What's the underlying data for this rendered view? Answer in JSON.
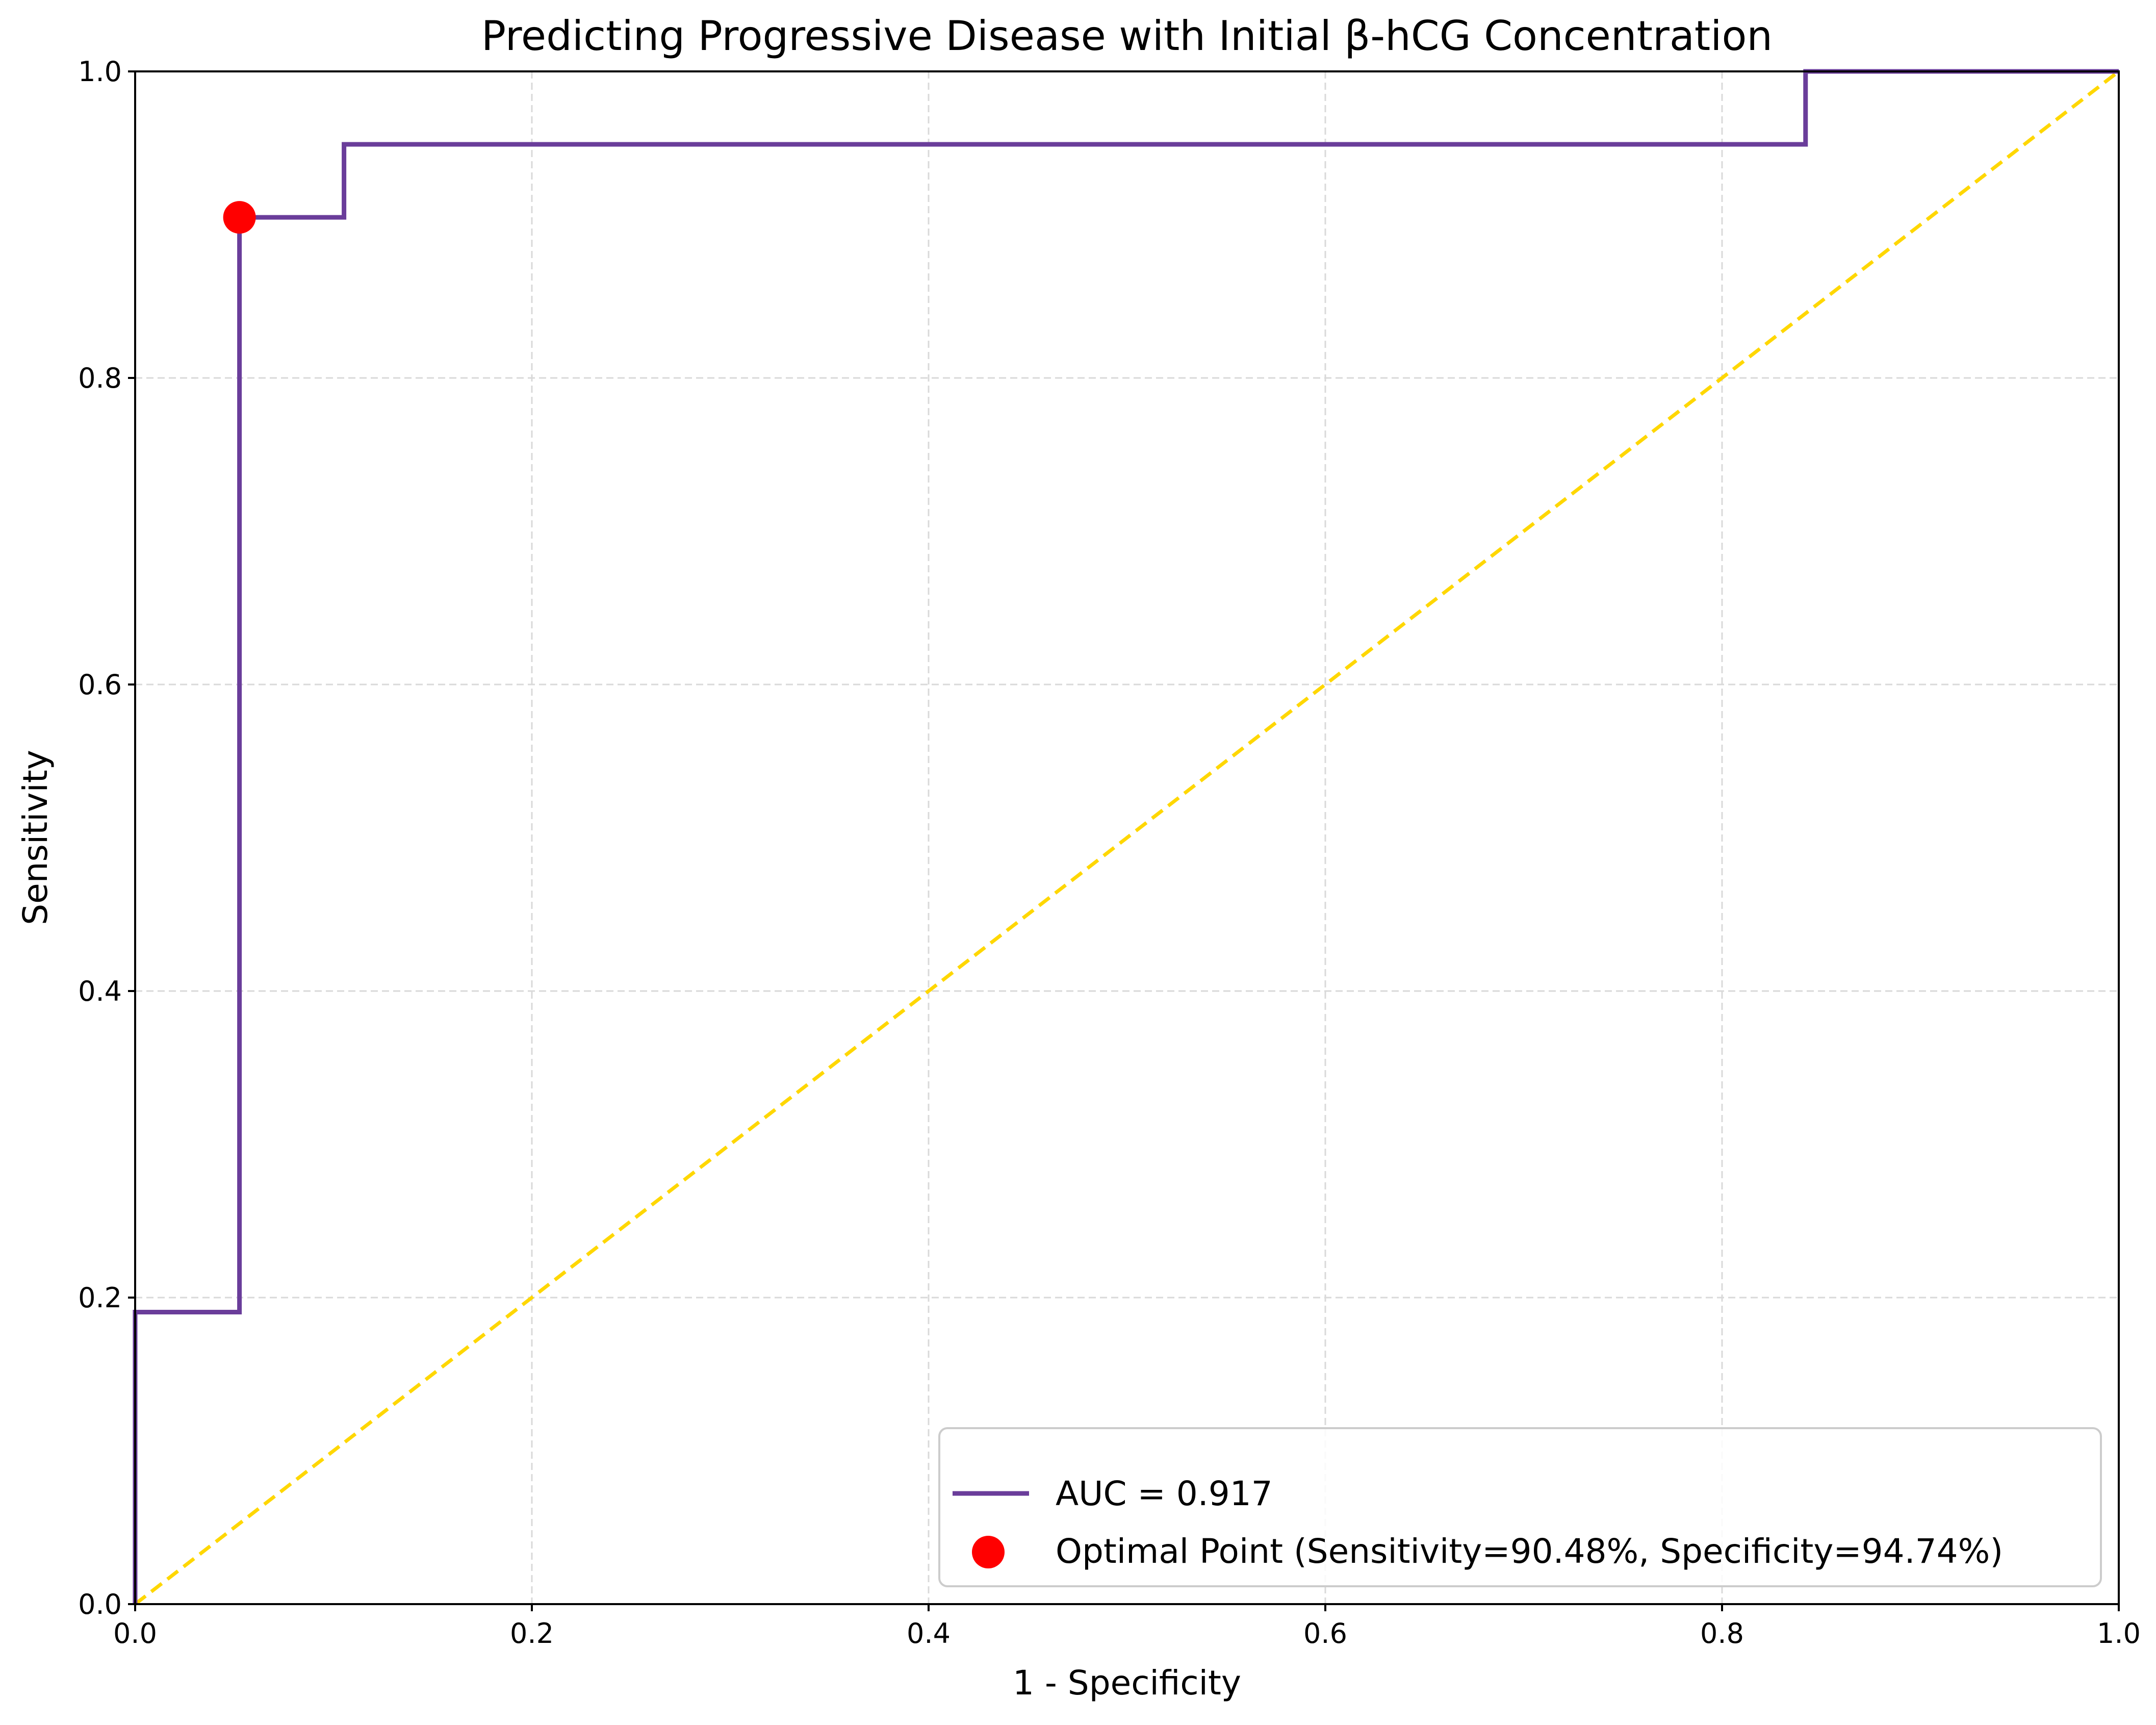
{
  "chart_data": {
    "type": "line",
    "title": "Predicting Progressive Disease with Initial β-hCG Concentration",
    "xlabel": "1 - Specificity",
    "ylabel": "Sensitivity",
    "xlim": [
      0.0,
      1.0
    ],
    "ylim": [
      0.0,
      1.0
    ],
    "xticks": [
      "0.0",
      "0.2",
      "0.4",
      "0.6",
      "0.8",
      "1.0"
    ],
    "yticks": [
      "0.0",
      "0.2",
      "0.4",
      "0.6",
      "0.8",
      "1.0"
    ],
    "grid": true,
    "legend_position": "bottom-right",
    "series": [
      {
        "name": "AUC = 0.917",
        "kind": "step-line",
        "color": "#6a3d9a",
        "x": [
          0.0,
          0.0,
          0.0526,
          0.0526,
          0.1053,
          0.1053,
          0.8421,
          0.8421,
          1.0
        ],
        "y": [
          0.0,
          0.1905,
          0.1905,
          0.9048,
          0.9048,
          0.9524,
          0.9524,
          1.0,
          1.0
        ]
      },
      {
        "name": "Optimal Point (Sensitivity=90.48%, Specificity=94.74%)",
        "kind": "point",
        "color": "#ff0000",
        "x": [
          0.0526
        ],
        "y": [
          0.9048
        ]
      }
    ],
    "reference_line": {
      "kind": "dashed-diagonal",
      "color": "#ffd700",
      "x": [
        0.0,
        1.0
      ],
      "y": [
        0.0,
        1.0
      ]
    }
  }
}
